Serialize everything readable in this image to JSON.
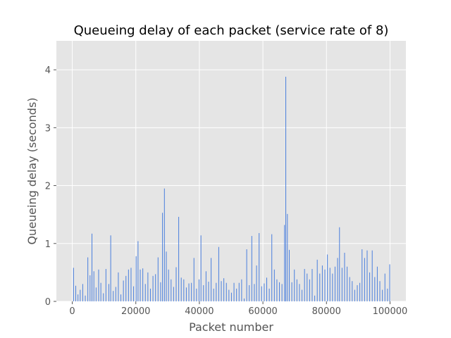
{
  "chart_data": {
    "type": "bar",
    "title": "Queueing delay of each packet (service rate of 8)",
    "xlabel": "Packet number",
    "ylabel": "Queueing delay (seconds)",
    "xlim": [
      -5000,
      105000
    ],
    "ylim": [
      0,
      4.5
    ],
    "xticks": [
      0,
      20000,
      40000,
      60000,
      80000,
      100000
    ],
    "yticks": [
      0,
      1,
      2,
      3,
      4
    ],
    "grid": true,
    "style": "ggplot",
    "bar_color": "#4a7fdd",
    "background_color": "#e5e5e5",
    "grid_color": "#ffffff",
    "x": [
      400,
      1100,
      1800,
      2500,
      3300,
      4100,
      4900,
      5600,
      6200,
      6800,
      7500,
      8300,
      9000,
      9800,
      10600,
      11500,
      12100,
      12900,
      13700,
      14500,
      15300,
      16100,
      16900,
      17700,
      18500,
      19300,
      20100,
      20700,
      21400,
      22200,
      23000,
      23800,
      24600,
      25400,
      26200,
      27000,
      27800,
      28400,
      29000,
      29600,
      30300,
      31100,
      31900,
      32700,
      33500,
      34300,
      35100,
      35900,
      36700,
      37500,
      38300,
      39100,
      39900,
      40500,
      41300,
      42100,
      42900,
      43700,
      44500,
      45300,
      46100,
      46900,
      47700,
      48500,
      49300,
      50100,
      50900,
      51700,
      52500,
      53300,
      54100,
      54900,
      55700,
      56500,
      57300,
      58000,
      58800,
      59600,
      60400,
      61200,
      62000,
      62800,
      63600,
      64400,
      65200,
      66000,
      66800,
      67200,
      67700,
      68300,
      69100,
      69900,
      70700,
      71500,
      72300,
      73100,
      73900,
      74700,
      75500,
      76300,
      77100,
      77900,
      78700,
      79500,
      80300,
      81100,
      81900,
      82700,
      83500,
      84100,
      84900,
      85700,
      86500,
      87300,
      88100,
      88900,
      89700,
      90500,
      91200,
      92000,
      92800,
      93600,
      94400,
      95200,
      96000,
      96800,
      97600,
      98400,
      99200,
      99900
    ],
    "values": [
      0.58,
      0.27,
      0.12,
      0.2,
      0.3,
      0.1,
      0.76,
      0.45,
      1.17,
      0.52,
      0.24,
      0.55,
      0.32,
      0.14,
      0.56,
      0.3,
      1.14,
      0.18,
      0.25,
      0.5,
      0.12,
      0.36,
      0.44,
      0.55,
      0.58,
      0.26,
      0.78,
      1.04,
      0.55,
      0.57,
      0.3,
      0.5,
      0.22,
      0.44,
      0.47,
      0.76,
      0.33,
      1.53,
      1.95,
      0.86,
      0.55,
      0.38,
      0.25,
      0.59,
      1.46,
      0.41,
      0.38,
      0.24,
      0.31,
      0.32,
      0.75,
      0.22,
      0.38,
      1.14,
      0.28,
      0.52,
      0.34,
      0.75,
      0.22,
      0.32,
      0.94,
      0.35,
      0.4,
      0.32,
      0.2,
      0.15,
      0.32,
      0.22,
      0.32,
      0.38,
      0.05,
      0.9,
      0.28,
      1.13,
      0.3,
      0.62,
      1.18,
      0.26,
      0.31,
      0.41,
      0.22,
      1.16,
      0.55,
      0.38,
      0.33,
      0.3,
      1.32,
      3.88,
      1.51,
      0.89,
      0.33,
      0.55,
      0.38,
      0.3,
      0.2,
      0.56,
      0.48,
      0.38,
      0.56,
      0.1,
      0.72,
      0.48,
      0.62,
      0.55,
      0.81,
      0.58,
      0.48,
      0.6,
      0.75,
      1.28,
      0.58,
      0.84,
      0.6,
      0.42,
      0.35,
      0.2,
      0.28,
      0.32,
      0.9,
      0.75,
      0.88,
      0.5,
      0.88,
      0.42,
      0.6,
      0.35,
      0.2,
      0.48,
      0.22,
      0.64
    ]
  }
}
